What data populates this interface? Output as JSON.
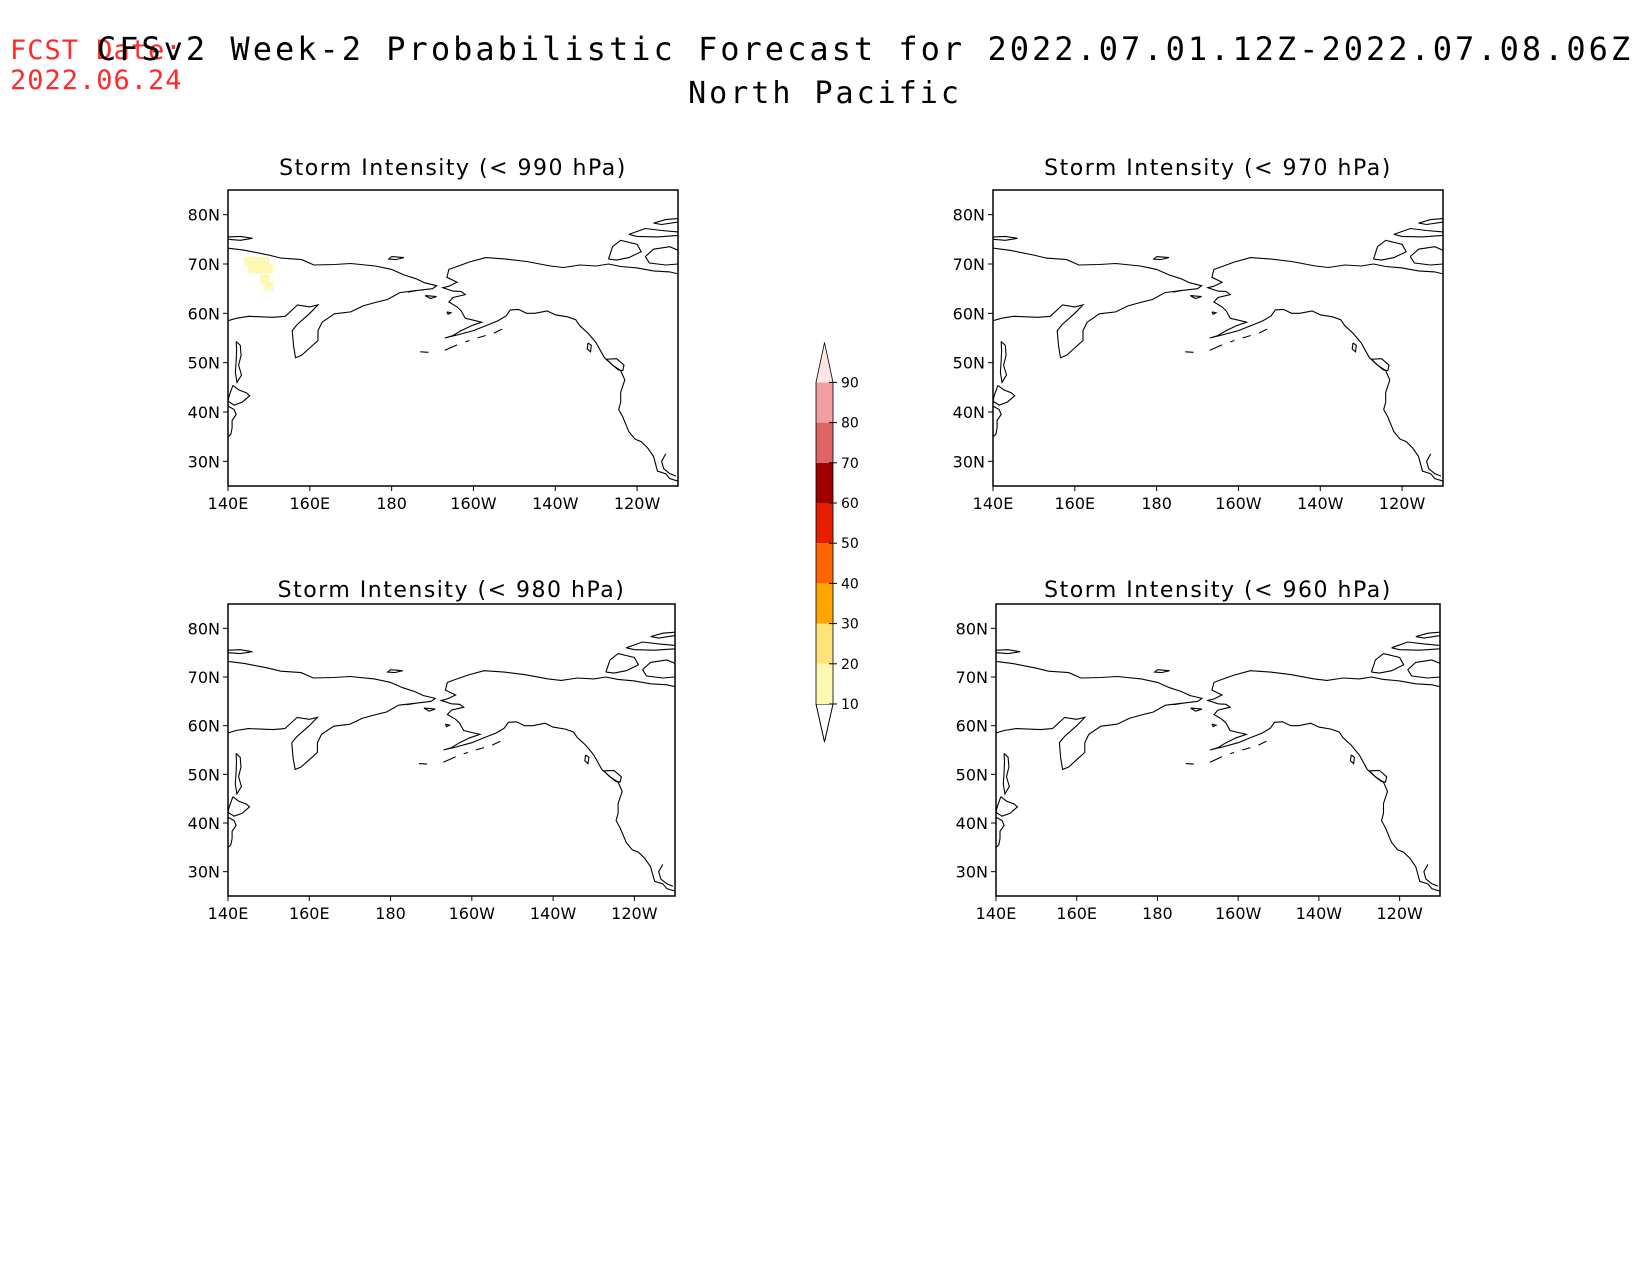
{
  "header": {
    "fcst_label": "FCST Date:",
    "fcst_date": "2022.06.24",
    "title": "CFSv2 Week-2 Probabilistic Forecast for 2022.07.01.12Z-2022.07.08.06Z",
    "subtitle": "North Pacific"
  },
  "chart_data": {
    "type": "heatmap",
    "lon_range": [
      140,
      250
    ],
    "lat_range": [
      25,
      85
    ],
    "x_ticks": [
      "140E",
      "160E",
      "180",
      "160W",
      "140W",
      "120W"
    ],
    "y_ticks": [
      "30N",
      "40N",
      "50N",
      "60N",
      "70N",
      "80N"
    ],
    "panels": [
      {
        "title": "Storm Intensity (< 990 hPa)",
        "cells": [
          {
            "lon": 145,
            "lat": 70.5,
            "value": 15
          },
          {
            "lon": 147,
            "lat": 70.5,
            "value": 15
          },
          {
            "lon": 149,
            "lat": 70.5,
            "value": 15
          },
          {
            "lon": 146,
            "lat": 69,
            "value": 15
          },
          {
            "lon": 148,
            "lat": 69,
            "value": 15
          },
          {
            "lon": 150,
            "lat": 69,
            "value": 15
          },
          {
            "lon": 149,
            "lat": 67,
            "value": 15
          },
          {
            "lon": 150,
            "lat": 65.5,
            "value": 15
          }
        ]
      },
      {
        "title": "Storm Intensity (< 970 hPa)",
        "cells": []
      },
      {
        "title": "Storm Intensity (< 980 hPa)",
        "cells": []
      },
      {
        "title": "Storm Intensity (< 960 hPa)",
        "cells": []
      }
    ],
    "colorbar": {
      "levels": [
        10,
        20,
        30,
        40,
        50,
        60,
        70,
        80,
        90
      ],
      "labels": [
        "10",
        "20",
        "30",
        "40",
        "50",
        "60",
        "70",
        "80",
        "90"
      ],
      "colors": [
        "#fff8b4",
        "#ffe37a",
        "#ffa500",
        "#ff6400",
        "#e61e00",
        "#a00000",
        "#e06464",
        "#f0a0a0",
        "#ffe6e6"
      ]
    }
  }
}
